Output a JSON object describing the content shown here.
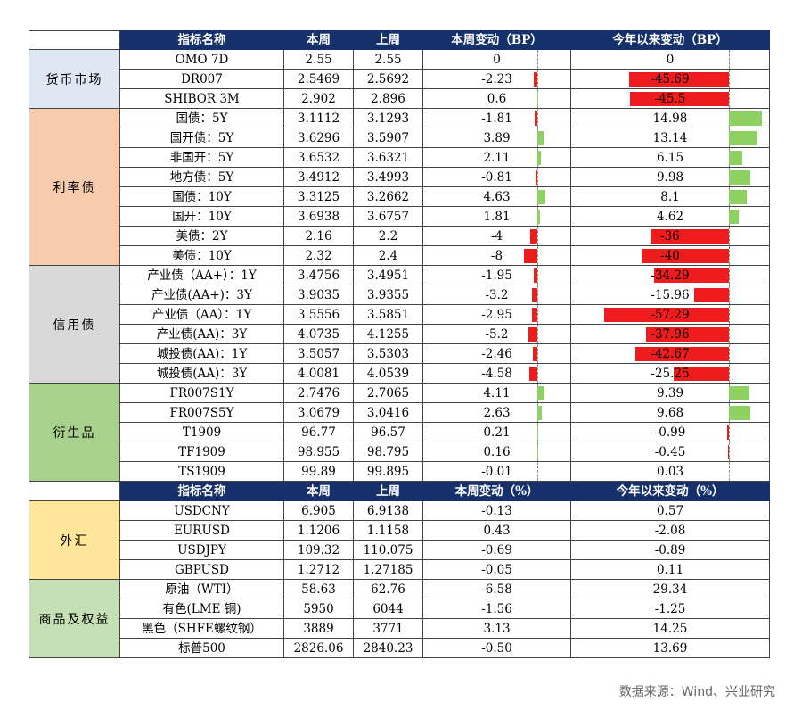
{
  "header1": [
    "指标名称",
    "本周",
    "上周",
    "本周变动（BP）",
    "今年以来变动（BP）"
  ],
  "header2": [
    "指标名称",
    "本周",
    "上周",
    "本周变动（%）",
    "今年以来变动（%）"
  ],
  "colors": {
    "header_bg": "#15306a",
    "positive_bar": "#8ed163",
    "negative_bar": "#ee1c1c"
  },
  "groups": [
    {
      "name": "货币市场",
      "color": "#dfe7f3",
      "rows": [
        [
          "OMO 7D",
          "2.55",
          "2.55",
          "0",
          "0"
        ],
        [
          "DR007",
          "2.5469",
          "2.5692",
          "-2.23",
          "-45.69"
        ],
        [
          "SHIBOR 3M",
          "2.902",
          "2.896",
          "0.6",
          "-45.5"
        ]
      ]
    },
    {
      "name": "利率债",
      "color": "#f8cbad",
      "rows": [
        [
          "国债：5Y",
          "3.1112",
          "3.1293",
          "-1.81",
          "14.98"
        ],
        [
          "国开债：5Y",
          "3.6296",
          "3.5907",
          "3.89",
          "13.14"
        ],
        [
          "非国开：5Y",
          "3.6532",
          "3.6321",
          "2.11",
          "6.15"
        ],
        [
          "地方债：5Y",
          "3.4912",
          "3.4993",
          "-0.81",
          "9.98"
        ],
        [
          "国债：10Y",
          "3.3125",
          "3.2662",
          "4.63",
          "8.1"
        ],
        [
          "国开：10Y",
          "3.6938",
          "3.6757",
          "1.81",
          "4.62"
        ],
        [
          "美债：2Y",
          "2.16",
          "2.2",
          "-4",
          "-36"
        ],
        [
          "美债：10Y",
          "2.32",
          "2.4",
          "-8",
          "-40"
        ]
      ]
    },
    {
      "name": "信用债",
      "color": "#d9d9d9",
      "rows": [
        [
          "产业债（AA+）：1Y",
          "3.4756",
          "3.4951",
          "-1.95",
          "-34.29"
        ],
        [
          "产业债(AA+)：3Y",
          "3.9035",
          "3.9355",
          "-3.2",
          "-15.96"
        ],
        [
          "产业债（AA）：1Y",
          "3.5556",
          "3.5851",
          "-2.95",
          "-57.29"
        ],
        [
          "产业债(AA)：3Y",
          "4.0735",
          "4.1255",
          "-5.2",
          "-37.96"
        ],
        [
          "城投债(AA)：1Y",
          "3.5057",
          "3.5303",
          "-2.46",
          "-42.67"
        ],
        [
          "城投债(AA)：3Y",
          "4.0081",
          "4.0539",
          "-4.58",
          "-25.25"
        ]
      ]
    },
    {
      "name": "衍生品",
      "color": "#a9d18e",
      "rows": [
        [
          "FR007S1Y",
          "2.7476",
          "2.7065",
          "4.11",
          "9.39"
        ],
        [
          "FR007S5Y",
          "3.0679",
          "3.0416",
          "2.63",
          "9.68"
        ],
        [
          "T1909",
          "96.77",
          "96.57",
          "0.21",
          "-0.99"
        ],
        [
          "TF1909",
          "98.955",
          "98.795",
          "0.16",
          "-0.45"
        ],
        [
          "TS1909",
          "99.89",
          "99.895",
          "-0.01",
          "0.03"
        ]
      ]
    },
    {
      "name": "外汇",
      "color": "#ffe699",
      "rows": [
        [
          "USDCNY",
          "6.905",
          "6.9138",
          "-0.13",
          "0.57"
        ],
        [
          "EURUSD",
          "1.1206",
          "1.1158",
          "0.43",
          "-2.08"
        ],
        [
          "USDJPY",
          "109.32",
          "110.075",
          "-0.69",
          "-0.89"
        ],
        [
          "GBPUSD",
          "1.2712",
          "1.27185",
          "-0.05",
          "0.11"
        ]
      ]
    },
    {
      "name": "商品及权益",
      "color": "#c5e0b4",
      "rows": [
        [
          "原油（WTI）",
          "58.63",
          "62.76",
          "-6.58",
          "29.34"
        ],
        [
          "有色(LME 铜)",
          "5950",
          "6044",
          "-1.56",
          "-1.25"
        ],
        [
          "黑色（SHFE螺纹钢）",
          "3889",
          "3771",
          "3.13",
          "14.25"
        ],
        [
          "标普500",
          "2826.06",
          "2840.23",
          "-0.50",
          "13.69"
        ]
      ]
    }
  ],
  "source": "数据来源：Wind、兴业研究"
}
